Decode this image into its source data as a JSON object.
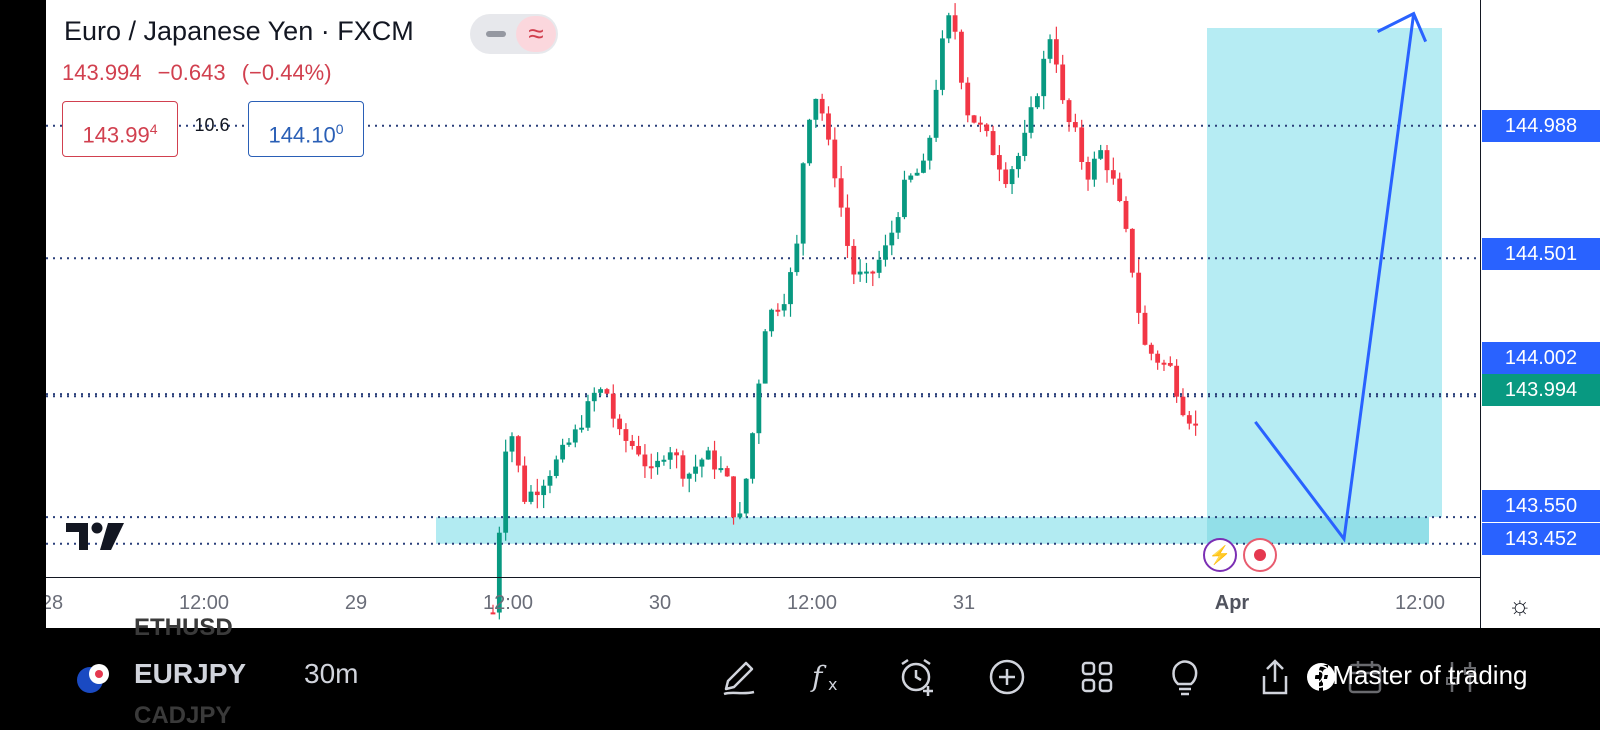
{
  "header": {
    "symbol_title": "Euro / Japanese Yen · FXCM",
    "last": "143.994",
    "change": "−0.643",
    "change_pct": "(−0.44%)",
    "sell_main": "143.99",
    "sell_sup": "4",
    "spread": "10.6",
    "buy_main": "144.10",
    "buy_sup": "0",
    "wave_icon": "≈"
  },
  "price_axis": {
    "tags": [
      "144.988",
      "144.501",
      "144.002",
      "143.994",
      "143.550",
      "143.452"
    ]
  },
  "time_axis": {
    "ticks": [
      "28",
      "12:00",
      "29",
      "12:00",
      "30",
      "12:00",
      "31",
      "Apr",
      "12:00"
    ]
  },
  "chart_data": {
    "type": "candlestick",
    "symbol": "EURJPY",
    "interval": "30m",
    "y_range": [
      143.33,
      145.45
    ],
    "horizontal_levels": [
      144.988,
      144.501,
      144.002,
      143.994,
      143.55,
      143.452
    ],
    "demand_zone": [
      143.452,
      143.55
    ],
    "projection_path": [
      {
        "x": "31 Mar 23:00",
        "y": 143.9
      },
      {
        "x": "1 Apr 06:00",
        "y": 143.47
      },
      {
        "x": "1 Apr 11:30",
        "y": 145.4
      }
    ],
    "colors": {
      "up": "#089981",
      "down": "#f23645",
      "zone": "#b2ebf2",
      "levels": "#2a3f7a",
      "projection": "#2962ff"
    }
  },
  "colors": {
    "accent": "#2962ff",
    "up": "#089981",
    "down": "#d1404f"
  },
  "toolbar": {
    "ghost_above": "ETHUSD",
    "symbol": "EURJPY",
    "timeframe": "30m",
    "ghost_below": "CADJPY",
    "icons": [
      "pencil-icon",
      "indicators-icon",
      "alert-icon",
      "add-icon",
      "grid-icon",
      "idea-bulb-icon",
      "share-icon",
      "calendar-icon",
      "settings-icon"
    ]
  },
  "watermark": "@Master of trading"
}
